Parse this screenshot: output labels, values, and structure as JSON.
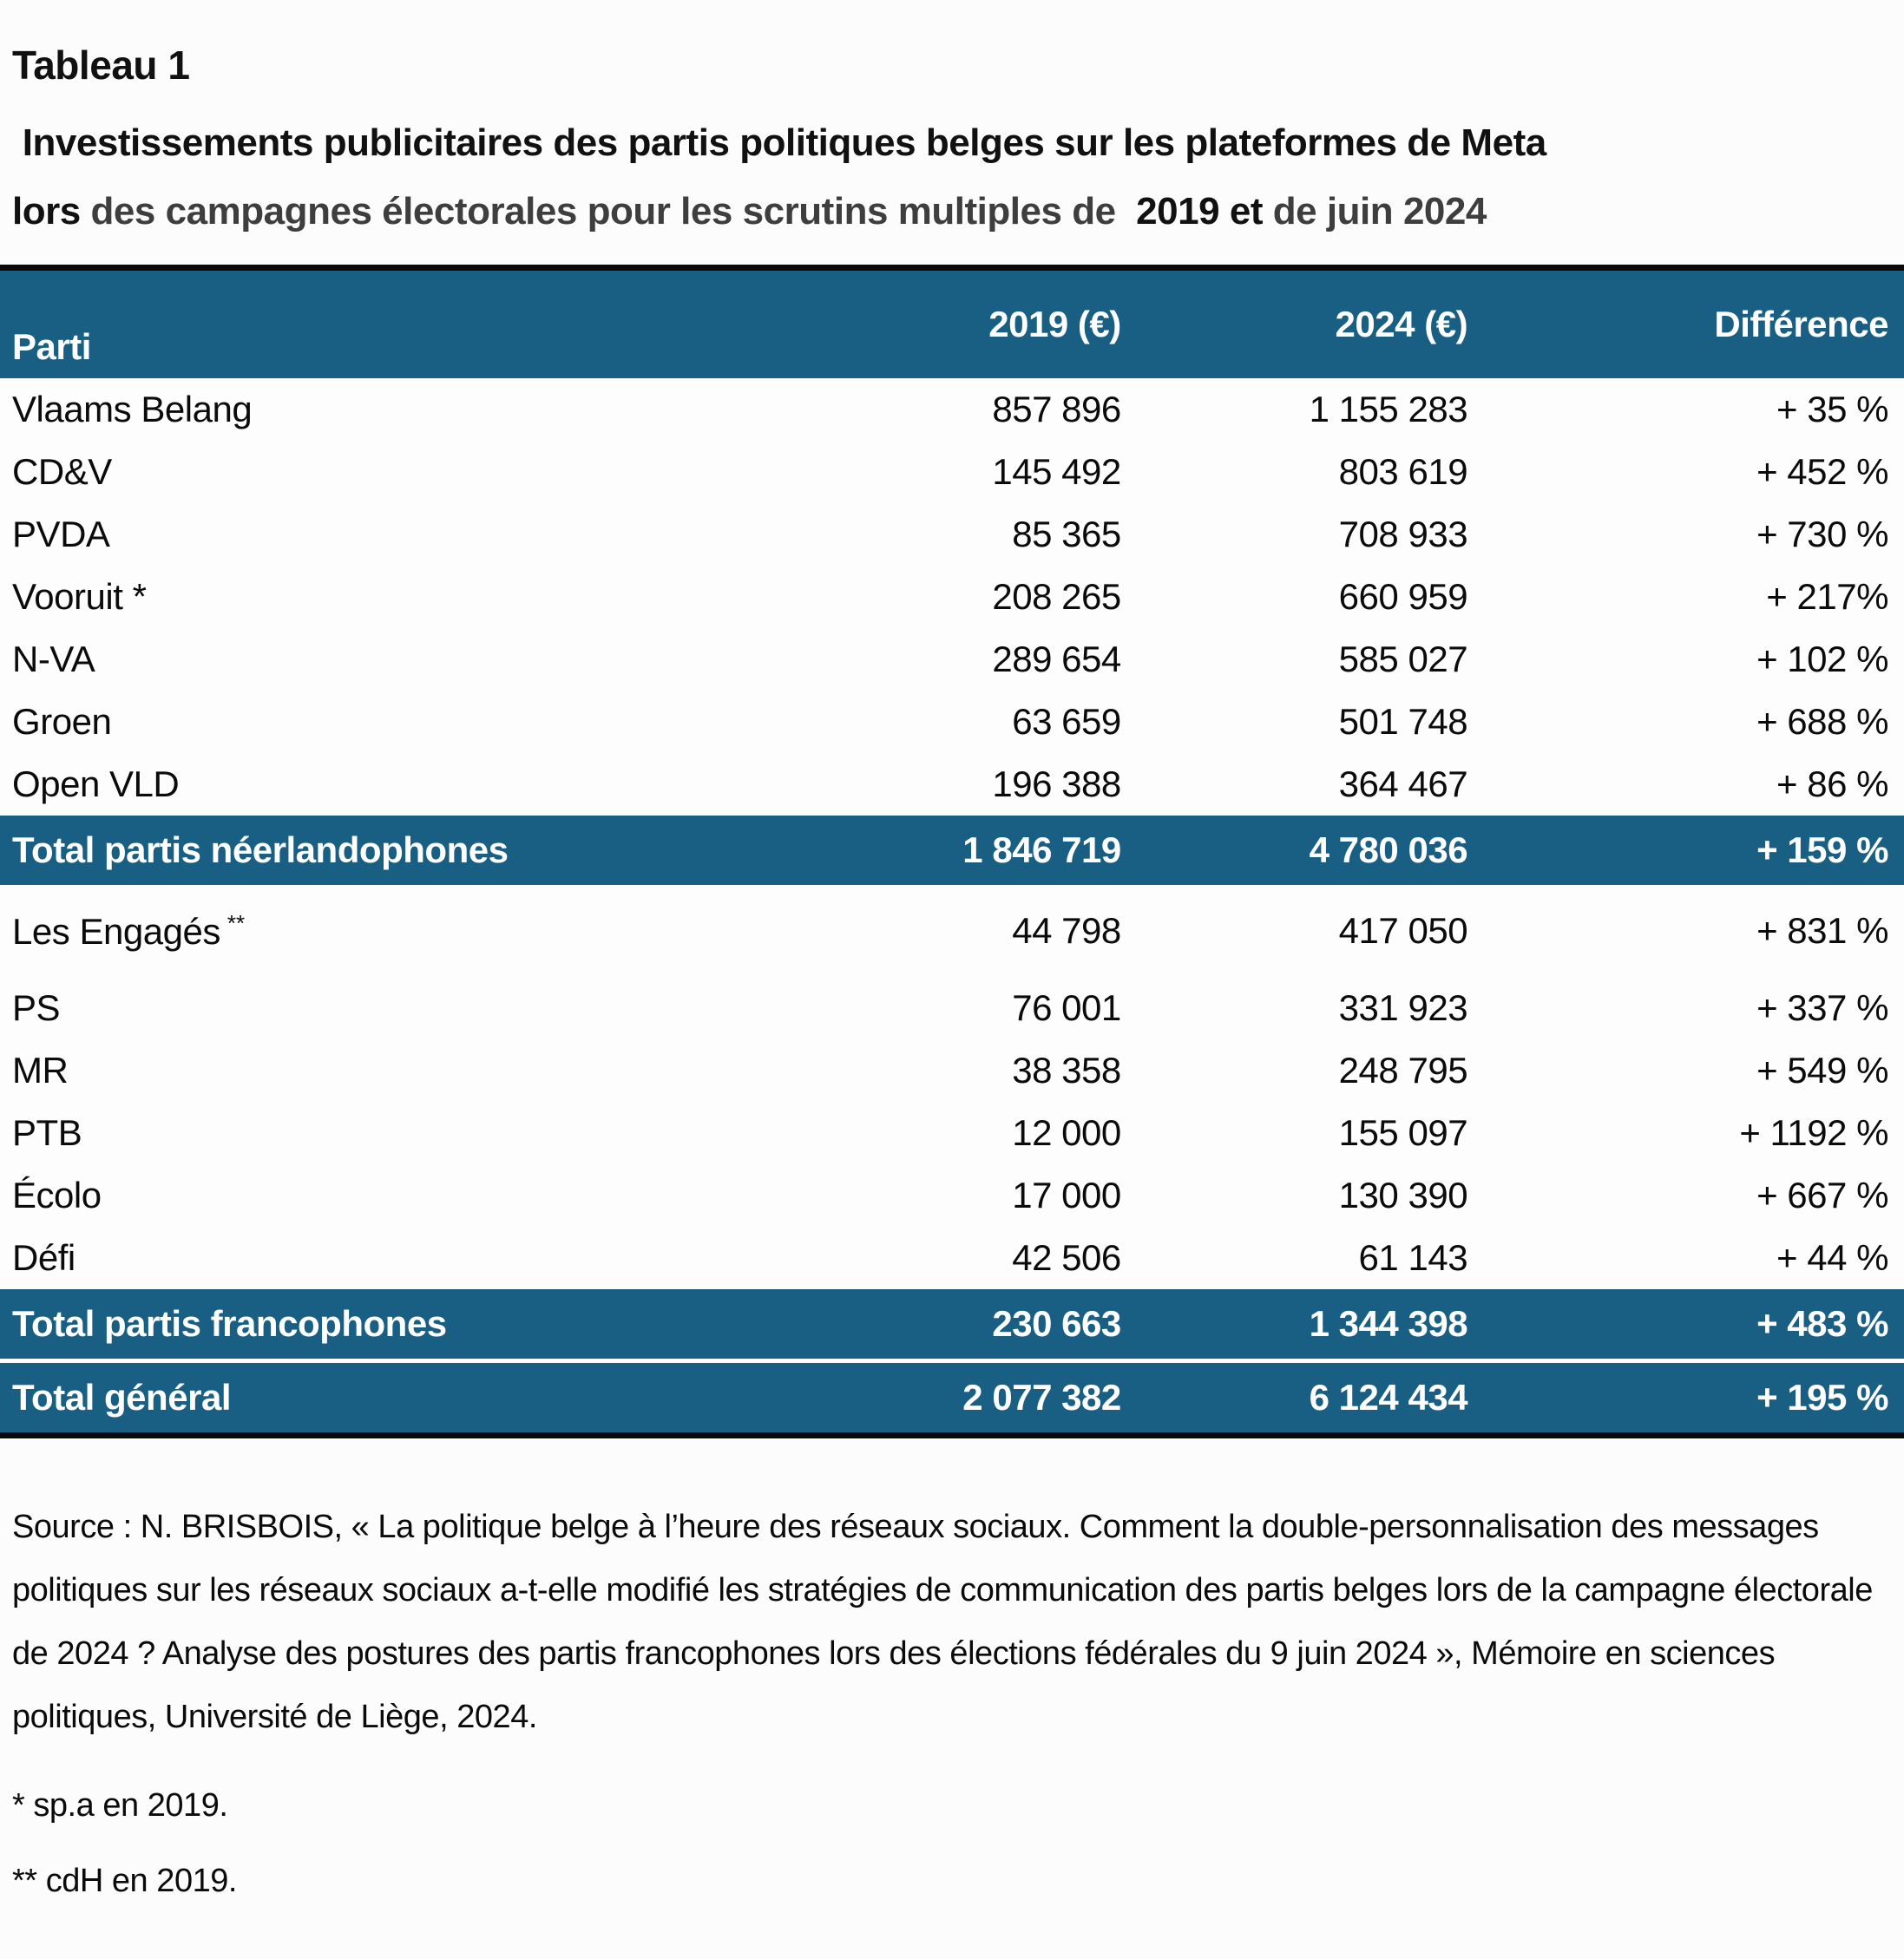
{
  "title": {
    "tag": "Tableau 1",
    "line1": " Investissements publicitaires des partis politiques belges sur les plateformes de Meta",
    "line2": {
      "part1_black": "lors ",
      "part2_gray": "des campagnes électorales pour les scrutins multiples de ",
      "part3_black": " 2019 et ",
      "part4_gray": "de juin 2024"
    }
  },
  "table": {
    "columns": [
      "Parti",
      "2019 (€)",
      "2024 (€)",
      "Différence"
    ],
    "rows": [
      {
        "party": "Vlaams Belang",
        "v2019": "857 896",
        "v2024": "1 155 283",
        "diff": "+ 35 %"
      },
      {
        "party": "CD&V",
        "v2019": "145 492",
        "v2024": "803 619",
        "diff": "+ 452 %"
      },
      {
        "party": "PVDA",
        "v2019": "85 365",
        "v2024": "708 933",
        "diff": "+ 730 %"
      },
      {
        "party": "Vooruit *",
        "v2019": "208 265",
        "v2024": "660 959",
        "diff": "+ 217%"
      },
      {
        "party": "N-VA",
        "v2019": "289 654",
        "v2024": "585 027",
        "diff": "+ 102 %"
      },
      {
        "party": "Groen",
        "v2019": "63 659",
        "v2024": "501 748",
        "diff": "+ 688 %"
      },
      {
        "party": "Open VLD",
        "v2019": "196 388",
        "v2024": "364 467",
        "diff": "+ 86 %"
      },
      {
        "party": "Total partis néerlandophones",
        "v2019": "1 846 719",
        "v2024": "4 780 036",
        "diff": "+ 159 %"
      },
      {
        "party": "Les Engagés",
        "party_sup": "**",
        "v2019": "44 798",
        "v2024": "417 050",
        "diff": "+ 831 %"
      },
      {
        "party": "PS",
        "v2019": "76 001",
        "v2024": "331 923",
        "diff": "+ 337 %"
      },
      {
        "party": "MR",
        "v2019": "38 358",
        "v2024": "248 795",
        "diff": "+ 549 %"
      },
      {
        "party": "PTB",
        "v2019": "12 000",
        "v2024": "155 097",
        "diff": "+ 1192 %"
      },
      {
        "party": "Écolo",
        "v2019": "17 000",
        "v2024": "130 390",
        "diff": "+ 667 %"
      },
      {
        "party": "Défi",
        "v2019": "42 506",
        "v2024": "61 143",
        "diff": "+ 44 %"
      },
      {
        "party": "Total partis francophones",
        "v2019": "230 663",
        "v2024": "1 344 398",
        "diff": "+ 483 %"
      },
      {
        "party": "Total général",
        "v2019": "2 077 382",
        "v2024": "6 124 434",
        "diff": "+ 195 %"
      }
    ]
  },
  "source": "Source : N. BRISBOIS, « La politique belge à l’heure des réseaux sociaux. Comment la double-personnalisation des messages politiques sur les réseaux sociaux a-t-elle modifié les stratégies de communication des partis belges lors de la campagne électorale de 2024 ? Analyse des postures des partis francophones lors des élections fédérales du 9 juin 2024 », Mémoire en sciences politiques, Université de Liège, 2024.",
  "footnotes": {
    "fn1": "* sp.a en 2019.",
    "fn2": "** cdH en 2019."
  },
  "colors": {
    "header_bg": "#185f83",
    "title_gray": "#3e3e3e",
    "text": "#0a0a0a"
  }
}
